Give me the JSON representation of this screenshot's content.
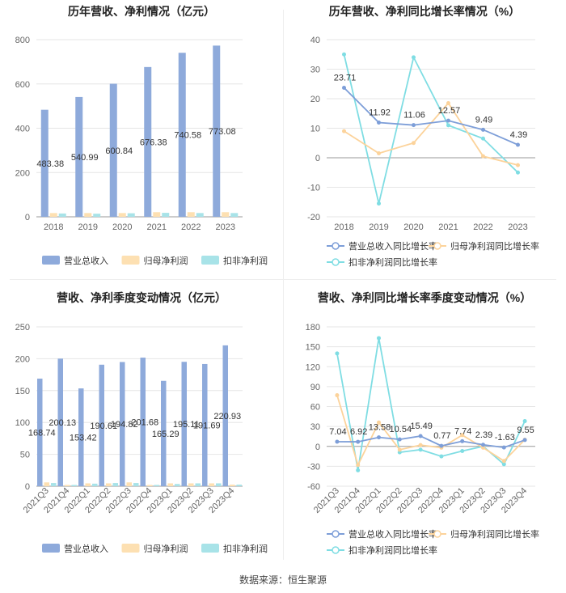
{
  "source": "数据来源：恒生聚源",
  "colors": {
    "revenue": "#8eaadb",
    "parent": "#fde0b2",
    "deducted": "#a8e3e8",
    "revLine": "#7d9ed8",
    "parentLine": "#fcd39b",
    "dedLine": "#7fdde3",
    "grid": "#e6e6e6",
    "axis": "#666"
  },
  "chart_data": [
    {
      "type": "bar",
      "title": "历年营收、净利情况（亿元）",
      "categories": [
        "2018",
        "2019",
        "2020",
        "2021",
        "2022",
        "2023"
      ],
      "series": [
        {
          "name": "营业总收入",
          "values": [
            483.38,
            540.99,
            600.84,
            676.38,
            740.58,
            773.08
          ]
        },
        {
          "name": "归母净利润",
          "values": [
            17,
            17,
            17,
            21,
            21,
            21
          ]
        },
        {
          "name": "扣非净利润",
          "values": [
            15,
            14,
            16,
            18,
            17,
            17
          ]
        }
      ],
      "data_labels": [
        "483.38",
        "540.99",
        "600.84",
        "676.38",
        "740.58",
        "773.08"
      ],
      "ylim": [
        0,
        800
      ],
      "yticks": [
        "0",
        "200",
        "400",
        "600",
        "800"
      ],
      "legend": [
        "营业总收入",
        "归母净利润",
        "扣非净利润"
      ]
    },
    {
      "type": "line",
      "title": "历年营收、净利同比增长率情况（%）",
      "categories": [
        "2018",
        "2019",
        "2020",
        "2021",
        "2022",
        "2023"
      ],
      "series": [
        {
          "name": "营业总收入同比增长率",
          "values": [
            23.71,
            11.92,
            11.06,
            12.57,
            9.49,
            4.39
          ]
        },
        {
          "name": "归母净利润同比增长率",
          "values": [
            9,
            1.5,
            5,
            18.5,
            0.5,
            -2.5
          ]
        },
        {
          "name": "扣非净利润同比增长率",
          "values": [
            35,
            -15.5,
            34,
            11,
            6.5,
            -5
          ]
        }
      ],
      "data_labels": [
        "23.71",
        "11.92",
        "11.06",
        "12.57",
        "9.49",
        "4.39"
      ],
      "ylim": [
        -20,
        40
      ],
      "yticks": [
        "-20",
        "-10",
        "0",
        "10",
        "20",
        "30",
        "40"
      ],
      "legend": [
        "营业总收入同比增长率",
        "归母净利润同比增长率",
        "扣非净利润同比增长率"
      ]
    },
    {
      "type": "bar",
      "title": "营收、净利季度变动情况（亿元）",
      "categories": [
        "2021Q3",
        "2021Q4",
        "2022Q1",
        "2022Q2",
        "2022Q3",
        "2022Q4",
        "2023Q1",
        "2023Q2",
        "2023Q3",
        "2023Q4"
      ],
      "series": [
        {
          "name": "营业总收入",
          "values": [
            168.74,
            200.13,
            153.42,
            190.61,
            194.82,
            201.68,
            165.29,
            195.11,
            191.69,
            220.93
          ]
        },
        {
          "name": "归母净利润",
          "values": [
            6,
            2,
            4.5,
            4.5,
            6,
            2,
            4.5,
            4.5,
            4.5,
            2.5
          ]
        },
        {
          "name": "扣非净利润",
          "values": [
            5,
            2,
            4,
            5,
            5,
            2,
            3.5,
            4.5,
            4.5,
            2.5
          ]
        }
      ],
      "data_labels": [
        "168.74",
        "200.13",
        "153.42",
        "190.61",
        "194.82",
        "201.68",
        "165.29",
        "195.11",
        "191.69",
        "220.93"
      ],
      "ylim": [
        0,
        250
      ],
      "yticks": [
        "0",
        "50",
        "100",
        "150",
        "200",
        "250"
      ],
      "legend": [
        "营业总收入",
        "归母净利润",
        "扣非净利润"
      ]
    },
    {
      "type": "line",
      "title": "营收、净利同比增长率季度变动情况（%）",
      "categories": [
        "2021Q3",
        "2021Q4",
        "2022Q1",
        "2022Q2",
        "2022Q3",
        "2022Q4",
        "2023Q1",
        "2023Q2",
        "2023Q3",
        "2023Q4"
      ],
      "series": [
        {
          "name": "营业总收入同比增长率",
          "values": [
            7.04,
            6.92,
            13.58,
            10.54,
            15.49,
            0.77,
            7.74,
            2.39,
            -1.63,
            9.55
          ]
        },
        {
          "name": "归母净利润同比增长率",
          "values": [
            77,
            -28,
            36,
            -5,
            2,
            -2,
            17,
            -2,
            -22,
            10
          ]
        },
        {
          "name": "扣非净利润同比增长率",
          "values": [
            140,
            -36,
            163,
            -9,
            -5,
            -15,
            -7,
            0,
            -27,
            38
          ]
        }
      ],
      "data_labels": [
        "7.04",
        "6.92",
        "13.58",
        "10.54",
        "15.49",
        "0.77",
        "7.74",
        "2.39",
        "-1.63",
        "9.55"
      ],
      "ylim": [
        -60,
        180
      ],
      "yticks": [
        "-60",
        "-30",
        "0",
        "30",
        "60",
        "90",
        "120",
        "150",
        "180"
      ],
      "legend": [
        "营业总收入同比增长率",
        "归母净利润同比增长率",
        "扣非净利润同比增长率"
      ]
    }
  ]
}
